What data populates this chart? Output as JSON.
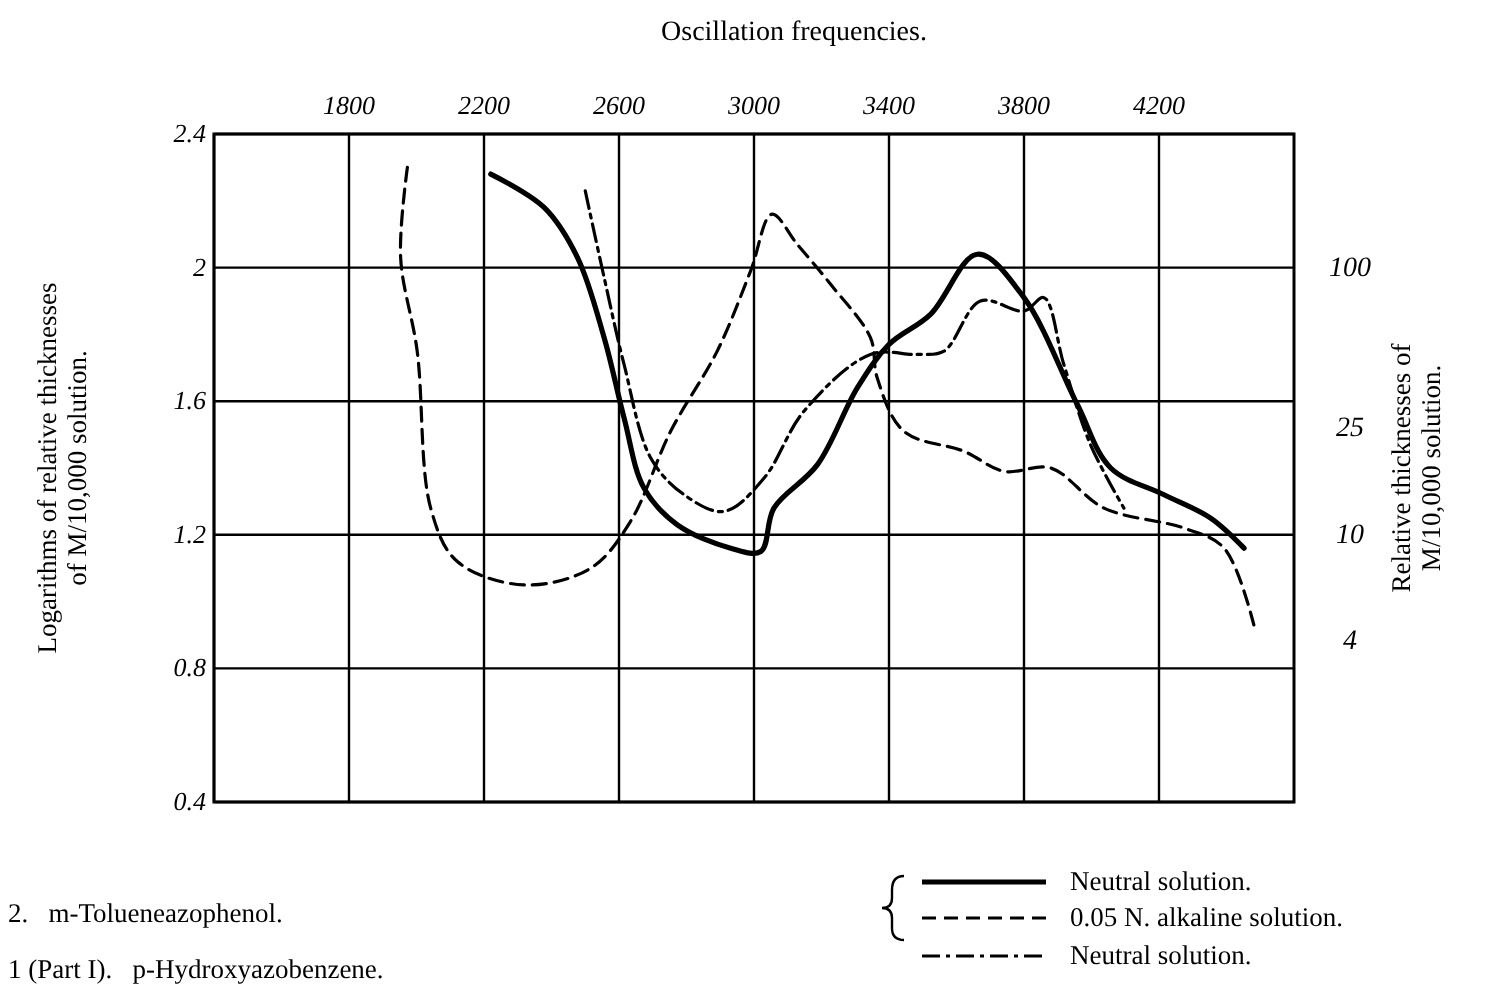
{
  "chart_data": {
    "type": "line",
    "title": "Oscillation frequencies.",
    "ylabel": "Logarithms of relative thicknesses of M/10,000 solution.",
    "y2label": "Relative thicknesses of M/10,000 solution.",
    "xlim": [
      1400,
      4600
    ],
    "xticks": [
      {
        "value": 1400,
        "label": null
      },
      1800,
      2200,
      2600,
      3000,
      3400,
      3800,
      4200
    ],
    "ylim": [
      0.4,
      2.4
    ],
    "yticks": [
      0.4,
      0.8,
      1.2,
      1.6,
      2.0,
      2.4
    ],
    "y2lim": [
      1,
      316
    ],
    "y2ticks": [
      4,
      10,
      25,
      100
    ],
    "log": "y2",
    "grid": true,
    "legend": "bottom",
    "marker": "none",
    "annotations": [
      "2.   m-Tolueneazophenol.",
      "1 (Part I).   p-Hydroxyazobenzene."
    ],
    "series": [
      {
        "name": "Neutral solution.",
        "color": "#000000",
        "line_style": "solid",
        "x": [
          2220,
          2378,
          2477,
          2556,
          2615,
          2674,
          2773,
          2931,
          3020,
          3059,
          3188,
          3306,
          3400,
          3523,
          3662,
          3800,
          3958,
          4057,
          4215,
          4353,
          4452
        ],
        "values": [
          2.28,
          2.18,
          2.03,
          1.79,
          1.55,
          1.34,
          1.23,
          1.16,
          1.15,
          1.28,
          1.41,
          1.64,
          1.77,
          1.86,
          2.04,
          1.91,
          1.59,
          1.4,
          1.32,
          1.25,
          1.16
        ]
      },
      {
        "name": "0.05 N. alkaline solution.",
        "color": "#000000",
        "line_style": "dashed",
        "x": [
          1973,
          1953,
          2002,
          2042,
          2121,
          2318,
          2516,
          2634,
          2753,
          2891,
          2990,
          3053,
          3128,
          3227,
          3345,
          3365,
          3444,
          3622,
          3741,
          3879,
          4037,
          4274,
          4393,
          4481
        ],
        "values": [
          2.3,
          2.03,
          1.75,
          1.28,
          1.12,
          1.05,
          1.1,
          1.24,
          1.51,
          1.75,
          1.99,
          2.16,
          2.07,
          1.95,
          1.79,
          1.67,
          1.51,
          1.45,
          1.39,
          1.4,
          1.28,
          1.22,
          1.16,
          0.93
        ]
      },
      {
        "name": "Neutral solution.",
        "color": "#000000",
        "line_style": "dashdot",
        "x": [
          2500,
          2556,
          2615,
          2694,
          2793,
          2911,
          3030,
          3148,
          3345,
          3484,
          3563,
          3671,
          3800,
          3859,
          3918,
          3997,
          4096
        ],
        "values": [
          2.23,
          1.97,
          1.71,
          1.43,
          1.32,
          1.27,
          1.37,
          1.57,
          1.74,
          1.74,
          1.75,
          1.9,
          1.87,
          1.91,
          1.71,
          1.47,
          1.28
        ]
      }
    ]
  }
}
